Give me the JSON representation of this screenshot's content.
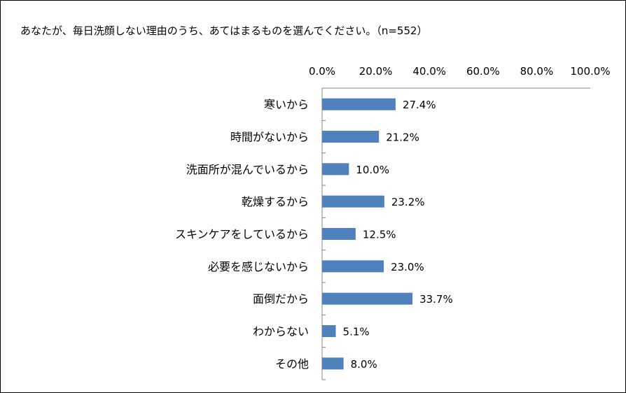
{
  "chart_data": {
    "type": "bar",
    "orientation": "horizontal",
    "title": "あなたが、毎日洗顔しない理由のうち、あてはまるものを選んでください。（n=552）",
    "categories": [
      "寒いから",
      "時間がないから",
      "洗面所が混んでいるから",
      "乾燥するから",
      "スキンケアをしているから",
      "必要を感じないから",
      "面倒だから",
      "わからない",
      "その他"
    ],
    "values": [
      27.4,
      21.2,
      10.0,
      23.2,
      12.5,
      23.0,
      33.7,
      5.1,
      8.0
    ],
    "data_labels": [
      "27.4%",
      "21.2%",
      "10.0%",
      "23.2%",
      "12.5%",
      "23.0%",
      "33.7%",
      "5.1%",
      "8.0%"
    ],
    "xlim": [
      0,
      100
    ],
    "x_ticks": [
      0,
      20,
      40,
      60,
      80,
      100
    ],
    "x_tick_labels": [
      "0.0%",
      "20.0%",
      "40.0%",
      "60.0%",
      "80.0%",
      "100.0%"
    ],
    "xaxis_position": "top",
    "xlabel": "",
    "ylabel": "",
    "grid": false,
    "legend": "none",
    "bar_color": "#4F81BD"
  }
}
